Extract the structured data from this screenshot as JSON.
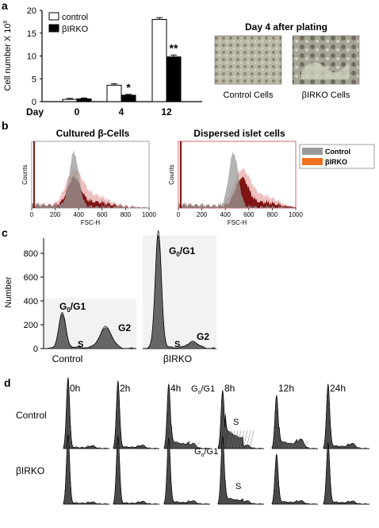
{
  "panels": {
    "a": "a",
    "b": "b",
    "c": "c",
    "d": "d"
  },
  "chart_data": [
    {
      "type": "bar",
      "panel": "a",
      "ylabel": "Cell number X 10",
      "ylabel_exp": "6",
      "xlabel": "Day",
      "categories": [
        "0",
        "4",
        "12"
      ],
      "yticks": [
        "0",
        "5",
        "10",
        "15",
        "20"
      ],
      "ylim": [
        0,
        20
      ],
      "series": [
        {
          "name": "control",
          "values": [
            0.5,
            3.6,
            18.0
          ],
          "errors": [
            0.2,
            0.3,
            0.4
          ],
          "color": "#ffffff"
        },
        {
          "name": "βIRKO",
          "values": [
            0.6,
            1.4,
            9.8
          ],
          "errors": [
            0.2,
            0.2,
            0.4
          ],
          "color": "#000000"
        }
      ],
      "significance": [
        {
          "category": "4",
          "mark": "*"
        },
        {
          "category": "12",
          "mark": "**"
        }
      ],
      "legend": "top-left"
    },
    {
      "type": "area",
      "panel": "b",
      "title": "Cultured β-Cells",
      "xlabel": "FSC-H",
      "ylabel": "Counts",
      "xticks": [
        "0",
        "200",
        "400",
        "600",
        "800",
        "1000"
      ],
      "xlim": [
        0,
        1000
      ],
      "series": [
        {
          "name": "Control",
          "peak": 360,
          "color": "#9a9a9a"
        },
        {
          "name": "βIRKO",
          "peak": 360,
          "color": "#8b1a1a"
        }
      ]
    },
    {
      "type": "area",
      "panel": "b",
      "title": "Dispersed islet cells",
      "xlabel": "FSC-H",
      "ylabel": "Counts",
      "xticks": [
        "0",
        "200",
        "400",
        "600",
        "800",
        "1000"
      ],
      "xlim": [
        0,
        1000
      ],
      "series": [
        {
          "name": "Control",
          "peak": 470,
          "color": "#9a9a9a"
        },
        {
          "name": "βIRKO",
          "peak": 540,
          "color": "#8b1a1a"
        }
      ]
    },
    {
      "type": "area",
      "panel": "c",
      "ylabel": "Number",
      "yticks": [
        "0",
        "200",
        "400",
        "600",
        "800"
      ],
      "ylim": [
        0,
        950
      ],
      "groups": [
        {
          "name": "Control",
          "g0g1_peak": 290,
          "g2_peak": 175
        },
        {
          "name": "βIRKO",
          "g0g1_peak": 950,
          "g2_peak": 55
        }
      ],
      "phase_labels": {
        "g0": "G",
        "g0_sub": "0",
        "g1": "/G1",
        "s": "S",
        "g2": "G2"
      }
    },
    {
      "type": "area",
      "panel": "d",
      "timepoints": [
        "0h",
        "2h",
        "4h",
        "8h",
        "12h",
        "24h"
      ],
      "rows": [
        "Control",
        "βIRKO"
      ],
      "phase_labels": {
        "g0": "G",
        "g0_sub": "o",
        "g1": "/G1",
        "s": "S"
      }
    }
  ],
  "photos": {
    "title": "Day 4 after plating",
    "captions": [
      "Control Cells",
      "βIRKO Cells"
    ]
  },
  "legend_b": [
    "Control",
    "βIRKO"
  ],
  "colors": {
    "control_gray": "#9a9a9a",
    "birko_red": "#8b1a1a",
    "birko_orange": "#f07020"
  }
}
